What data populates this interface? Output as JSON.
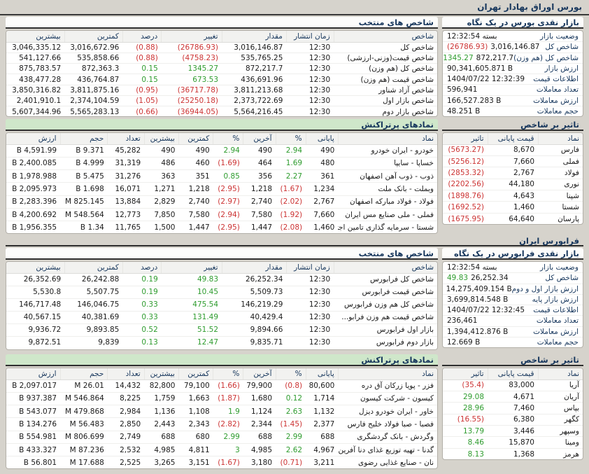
{
  "page_title": "بورس اوراق بهادار تهران",
  "colors": {
    "negative": "#cc3333",
    "positive": "#2e9c2e",
    "header_text": "#16365c",
    "band_green": "#cfe7ca"
  },
  "bourse": {
    "overview": {
      "title": "بازار نقدی بورس در یک نگاه",
      "rows": [
        {
          "label": "وضعیت بازار",
          "value": "بسته 12:32:54"
        },
        {
          "label": "شاخص کل",
          "value": "3,016,146.87",
          "change": "(26786.93)",
          "tone": "neg"
        },
        {
          "label": "شاخص کل (هم وزن)",
          "value": "872,217.7",
          "change": "1345.27",
          "tone": "pos"
        },
        {
          "label": "ارزش بازار",
          "value": "90,341,605.871 B"
        },
        {
          "label": "اطلاعات قیمت",
          "value": "1404/07/22 12:32:39"
        },
        {
          "label": "تعداد معاملات",
          "value": "596,941"
        },
        {
          "label": "ارزش معاملات",
          "value": "166,527.283 B"
        },
        {
          "label": "حجم معاملات",
          "value": "48.251 B"
        }
      ]
    },
    "indices": {
      "title": "شاخص های منتخب",
      "columns": [
        "شاخص",
        "زمان انتشار",
        "مقدار",
        "تغییر",
        "درصد",
        "کمترین",
        "بیشترین"
      ],
      "rows": [
        [
          "شاخص کل",
          "12:30",
          "3,016,146.87",
          {
            "v": "(26786.93)",
            "s": "neg"
          },
          {
            "v": "(0.88)",
            "s": "neg"
          },
          "3,016,672.96",
          "3,046,335.12"
        ],
        [
          "شاخص قیمت(وزنی-ارزشی)",
          "12:30",
          "535,765.25",
          {
            "v": "(4758.23)",
            "s": "neg"
          },
          {
            "v": "(0.88)",
            "s": "neg"
          },
          "535,858.66",
          "541,127.66"
        ],
        [
          "شاخص کل (هم وزن)",
          "12:30",
          "872,217.7",
          {
            "v": "1345.27",
            "s": "pos"
          },
          {
            "v": "0.15",
            "s": "pos"
          },
          "872,363.3",
          "875,783.57"
        ],
        [
          "شاخص قیمت (هم وزن)",
          "12:30",
          "436,691.96",
          {
            "v": "673.53",
            "s": "pos"
          },
          {
            "v": "0.15",
            "s": "pos"
          },
          "436,764.87",
          "438,477.28"
        ],
        [
          "شاخص آزاد شناور",
          "12:30",
          "3,811,213.68",
          {
            "v": "(36717.78)",
            "s": "neg"
          },
          {
            "v": "(0.95)",
            "s": "neg"
          },
          "3,811,875.16",
          "3,850,316.82"
        ],
        [
          "شاخص بازار اول",
          "12:30",
          "2,373,722.69",
          {
            "v": "(25250.18)",
            "s": "neg"
          },
          {
            "v": "(1.05)",
            "s": "neg"
          },
          "2,374,104.59",
          "2,401,910.1"
        ],
        [
          "شاخص بازار دوم",
          "12:30",
          "5,564,216.45",
          {
            "v": "(36944.05)",
            "s": "neg"
          },
          {
            "v": "(0.66)",
            "s": "neg"
          },
          "5,565,283.13",
          "5,607,344.96"
        ]
      ]
    },
    "impact": {
      "title": "تاثیر بر شاخص",
      "columns": [
        "نماد",
        "قیمت پایانی",
        "تاثیر"
      ],
      "rows": [
        [
          "فارس",
          "8,670",
          {
            "v": "(5673.27)",
            "s": "neg"
          }
        ],
        [
          "فملی",
          "7,660",
          {
            "v": "(5256.12)",
            "s": "neg"
          }
        ],
        [
          "فولاد",
          "2,767",
          {
            "v": "(2853.32)",
            "s": "neg"
          }
        ],
        [
          "نوری",
          "44,180",
          {
            "v": "(2202.56)",
            "s": "neg"
          }
        ],
        [
          "شپنا",
          "4,643",
          {
            "v": "(1898.76)",
            "s": "neg"
          }
        ],
        [
          "شستا",
          "1,460",
          {
            "v": "(1692.52)",
            "s": "neg"
          }
        ],
        [
          "پارسان",
          "64,640",
          {
            "v": "(1675.95)",
            "s": "neg"
          }
        ]
      ]
    },
    "active": {
      "title": "نمادهای پرتراکنش",
      "columns": [
        "نماد",
        "پایانی",
        "%",
        "آخرین",
        "%",
        "کمترین",
        "بیشترین",
        "تعداد",
        "حجم",
        "ارزش"
      ],
      "rows": [
        [
          "خودرو - ایران خودرو",
          "490",
          {
            "v": "2.94",
            "s": "pos"
          },
          "490",
          {
            "v": "2.94",
            "s": "pos"
          },
          "490",
          "490",
          "45,282",
          "9.371 B",
          "4,591.99 B"
        ],
        [
          "خساپا - سایپا",
          "480",
          {
            "v": "1.69",
            "s": "pos"
          },
          "464",
          {
            "v": "(1.69)",
            "s": "neg"
          },
          "460",
          "486",
          "31,319",
          "4.999 B",
          "2,400.085 B"
        ],
        [
          "ذوب - ذوب آهن اصفهان",
          "361",
          {
            "v": "2.27",
            "s": "pos"
          },
          "356",
          {
            "v": "0.85",
            "s": "pos"
          },
          "351",
          "363",
          "31,276",
          "5.475 B",
          "1,978.988 B"
        ],
        [
          "وبملت - بانک ملت",
          "1,234",
          {
            "v": "(1.67)",
            "s": "neg"
          },
          "1,218",
          {
            "v": "(2.95)",
            "s": "neg"
          },
          "1,218",
          "1,271",
          "16,071",
          "1.698 B",
          "2,095.973 B"
        ],
        [
          "فولاد - فولاد مبارکه اصفهان",
          "2,767",
          {
            "v": "(2.02)",
            "s": "neg"
          },
          "2,740",
          {
            "v": "(2.97)",
            "s": "neg"
          },
          "2,740",
          "2,829",
          "13,884",
          "825.145 M",
          "2,283.396 B"
        ],
        [
          "فملی - ملی صنایع مس ایران",
          "7,660",
          {
            "v": "(1.92)",
            "s": "neg"
          },
          "7,580",
          {
            "v": "(2.94)",
            "s": "neg"
          },
          "7,580",
          "7,850",
          "12,773",
          "548.564 M",
          "4,200.692 B"
        ],
        [
          "شستا - سرمایه گذاری تامین اجتماعی",
          "1,460",
          {
            "v": "(2.08)",
            "s": "neg"
          },
          "1,447",
          {
            "v": "(2.95)",
            "s": "neg"
          },
          "1,447",
          "1,500",
          "11,765",
          "1.34 B",
          "1,956.355 B"
        ]
      ]
    }
  },
  "farabourse": {
    "section_title": "فرابورس ایران",
    "overview": {
      "title": "بازار نقدی فرابورس در یک نگاه",
      "rows": [
        {
          "label": "وضعیت بازار",
          "value": "بسته 12:32:54"
        },
        {
          "label": "شاخص کل",
          "value": "26,252.34",
          "change": "49.83",
          "tone": "pos"
        },
        {
          "label": "ارزش بازار اول و دوم",
          "value": "14,275,409.154 B"
        },
        {
          "label": "ارزش بازار پایه",
          "value": "3,699,814.548 B"
        },
        {
          "label": "اطلاعات قیمت",
          "value": "1404/07/22 12:32:45"
        },
        {
          "label": "تعداد معاملات",
          "value": "236,461"
        },
        {
          "label": "ارزش معاملات",
          "value": "1,394,412.876 B"
        },
        {
          "label": "حجم معاملات",
          "value": "12.669 B"
        }
      ]
    },
    "indices": {
      "title": "شاخص های منتخب",
      "columns": [
        "شاخص",
        "زمان انتشار",
        "مقدار",
        "تغییر",
        "درصد",
        "کمترین",
        "بیشترین"
      ],
      "rows": [
        [
          "شاخص کل فرابورس",
          "12:30",
          "26,252.34",
          {
            "v": "49.83",
            "s": "pos"
          },
          {
            "v": "0.19",
            "s": "pos"
          },
          "26,242.88",
          "26,352.69"
        ],
        [
          "شاخص قیمت فرابورس",
          "12:30",
          "5,509.73",
          {
            "v": "10.45",
            "s": "pos"
          },
          {
            "v": "0.19",
            "s": "pos"
          },
          "5,507.75",
          "5,530.8"
        ],
        [
          "شاخص کل هم وزن فرابورس",
          "12:30",
          "146,219.29",
          {
            "v": "475.54",
            "s": "pos"
          },
          {
            "v": "0.33",
            "s": "pos"
          },
          "146,046.75",
          "146,717.48"
        ],
        [
          "شاخص قیمت هم وزن فرابو...",
          "12:30",
          "40,429.4",
          {
            "v": "131.49",
            "s": "pos"
          },
          {
            "v": "0.33",
            "s": "pos"
          },
          "40,381.69",
          "40,567.15"
        ],
        [
          "بازار اول فرابورس",
          "12:30",
          "9,894.66",
          {
            "v": "51.52",
            "s": "pos"
          },
          {
            "v": "0.52",
            "s": "pos"
          },
          "9,893.85",
          "9,936.72"
        ],
        [
          "بازار دوم فرابورس",
          "12:30",
          "9,835.71",
          {
            "v": "12.47",
            "s": "pos"
          },
          {
            "v": "0.13",
            "s": "pos"
          },
          "9,839",
          "9,872.51"
        ]
      ]
    },
    "impact": {
      "title": "تاثیر بر شاخص",
      "columns": [
        "نماد",
        "قیمت پایانی",
        "تاثیر"
      ],
      "rows": [
        [
          "آریا",
          "83,000",
          {
            "v": "(35.4)",
            "s": "neg"
          }
        ],
        [
          "آریان",
          "4,671",
          {
            "v": "29.08",
            "s": "pos"
          }
        ],
        [
          "بپاس",
          "7,460",
          {
            "v": "28.96",
            "s": "pos"
          }
        ],
        [
          "کگهر",
          "6,380",
          {
            "v": "(16.55)",
            "s": "neg"
          }
        ],
        [
          "وسپهر",
          "3,446",
          {
            "v": "13.79",
            "s": "pos"
          }
        ],
        [
          "ومینا",
          "15,870",
          {
            "v": "8.46",
            "s": "pos"
          }
        ],
        [
          "هرمز",
          "1,368",
          {
            "v": "8.13",
            "s": "pos"
          }
        ]
      ]
    },
    "active": {
      "title": "نمادهای پرتراکنش",
      "columns": [
        "نماد",
        "پایانی",
        "%",
        "آخرین",
        "%",
        "کمترین",
        "بیشترین",
        "تعداد",
        "حجم",
        "ارزش"
      ],
      "rows": [
        [
          "فزر - پویا زرکان آق دره",
          "80,600",
          {
            "v": "(0.8)",
            "s": "neg"
          },
          "79,900",
          {
            "v": "(1.66)",
            "s": "neg"
          },
          "79,100",
          "82,800",
          "14,432",
          "26.01 M",
          "2,097.017 B"
        ],
        [
          "کیسون - شرکت کیسون",
          "1,714",
          {
            "v": "0.12",
            "s": "pos"
          },
          "1,680",
          {
            "v": "(1.87)",
            "s": "neg"
          },
          "1,663",
          "1,759",
          "8,225",
          "546.864 M",
          "937.387 B"
        ],
        [
          "خاور - ایران خودرو دیزل",
          "1,132",
          {
            "v": "2.63",
            "s": "pos"
          },
          "1,124",
          {
            "v": "1.9",
            "s": "pos"
          },
          "1,108",
          "1,136",
          "2,984",
          "479.868 M",
          "543.077 B"
        ],
        [
          "فصبا - صبا فولاد خلیج فارس",
          "2,377",
          {
            "v": "(1.45)",
            "s": "neg"
          },
          "2,344",
          {
            "v": "(2.82)",
            "s": "neg"
          },
          "2,343",
          "2,443",
          "2,850",
          "56.483 M",
          "134.276 B"
        ],
        [
          "وگردش - بانک گردشگری",
          "688",
          {
            "v": "2.99",
            "s": "pos"
          },
          "688",
          {
            "v": "2.99",
            "s": "pos"
          },
          "680",
          "688",
          "2,749",
          "806.699 M",
          "554.981 B"
        ],
        [
          "گدنا - تهیه توزیع غذای دنا آفرین فدک",
          "4,967",
          {
            "v": "2.62",
            "s": "pos"
          },
          "4,985",
          {
            "v": "3",
            "s": "pos"
          },
          "4,811",
          "4,985",
          "2,532",
          "87.236 M",
          "433.327 B"
        ],
        [
          "نان - صنایع غذایی رضوی",
          "3,211",
          {
            "v": "(0.71)",
            "s": "neg"
          },
          "3,180",
          {
            "v": "(1.67)",
            "s": "neg"
          },
          "3,151",
          "3,265",
          "2,525",
          "17.688 M",
          "56.801 B"
        ]
      ]
    }
  }
}
